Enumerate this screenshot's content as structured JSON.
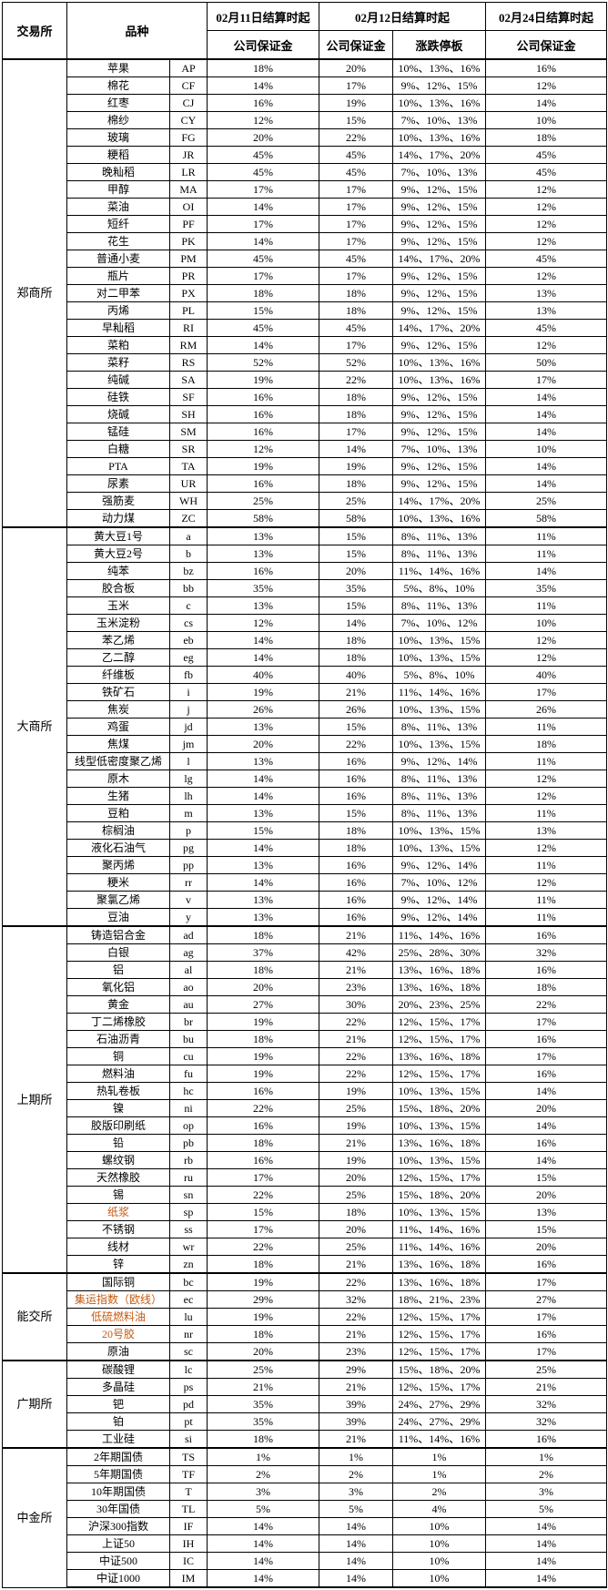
{
  "header": {
    "exchange": "交易所",
    "product": "品种",
    "col_0211": "02月11日结算时起",
    "col_0212": "02月12日结算时起",
    "col_0224": "02月24日结算时起",
    "sub_margin_0211": "公司保证金",
    "sub_margin_0212": "公司保证金",
    "sub_limit": "涨跌停板",
    "sub_margin_0224": "公司保证金"
  },
  "accent_color": "#C55A11",
  "highlight_names": [
    "纸浆",
    "集运指数（欧线）",
    "低硫燃料油",
    "20号胶"
  ],
  "columns_order": [
    "品种名称",
    "代码",
    "02月11日公司保证金",
    "02月12日公司保证金",
    "02月12日涨跌停板",
    "02月24日公司保证金"
  ],
  "groups": [
    {
      "exchange": "郑商所",
      "rows": [
        [
          "苹果",
          "AP",
          "18%",
          "20%",
          "10%、13%、16%",
          "16%"
        ],
        [
          "棉花",
          "CF",
          "14%",
          "17%",
          "9%、12%、15%",
          "12%"
        ],
        [
          "红枣",
          "CJ",
          "16%",
          "19%",
          "10%、13%、16%",
          "14%"
        ],
        [
          "棉纱",
          "CY",
          "12%",
          "15%",
          "7%、10%、13%",
          "10%"
        ],
        [
          "玻璃",
          "FG",
          "20%",
          "22%",
          "10%、13%、16%",
          "18%"
        ],
        [
          "粳稻",
          "JR",
          "45%",
          "45%",
          "14%、17%、20%",
          "45%"
        ],
        [
          "晚籼稻",
          "LR",
          "45%",
          "45%",
          "7%、10%、13%",
          "45%"
        ],
        [
          "甲醇",
          "MA",
          "17%",
          "17%",
          "9%、12%、15%",
          "12%"
        ],
        [
          "菜油",
          "OI",
          "14%",
          "17%",
          "9%、12%、15%",
          "12%"
        ],
        [
          "短纤",
          "PF",
          "17%",
          "17%",
          "9%、12%、15%",
          "12%"
        ],
        [
          "花生",
          "PK",
          "14%",
          "17%",
          "9%、12%、15%",
          "12%"
        ],
        [
          "普通小麦",
          "PM",
          "45%",
          "45%",
          "14%、17%、20%",
          "45%"
        ],
        [
          "瓶片",
          "PR",
          "17%",
          "17%",
          "9%、12%、15%",
          "12%"
        ],
        [
          "对二甲苯",
          "PX",
          "18%",
          "18%",
          "9%、12%、15%",
          "13%"
        ],
        [
          "丙烯",
          "PL",
          "15%",
          "18%",
          "9%、12%、15%",
          "13%"
        ],
        [
          "早籼稻",
          "RI",
          "45%",
          "45%",
          "14%、17%、20%",
          "45%"
        ],
        [
          "菜粕",
          "RM",
          "14%",
          "17%",
          "9%、12%、15%",
          "12%"
        ],
        [
          "菜籽",
          "RS",
          "52%",
          "52%",
          "10%、13%、16%",
          "50%"
        ],
        [
          "纯碱",
          "SA",
          "19%",
          "22%",
          "10%、13%、16%",
          "17%"
        ],
        [
          "硅铁",
          "SF",
          "16%",
          "18%",
          "9%、12%、15%",
          "14%"
        ],
        [
          "烧碱",
          "SH",
          "16%",
          "18%",
          "9%、12%、15%",
          "14%"
        ],
        [
          "锰硅",
          "SM",
          "16%",
          "17%",
          "9%、12%、15%",
          "14%"
        ],
        [
          "白糖",
          "SR",
          "12%",
          "14%",
          "7%、10%、13%",
          "10%"
        ],
        [
          "PTA",
          "TA",
          "19%",
          "19%",
          "9%、12%、15%",
          "14%"
        ],
        [
          "尿素",
          "UR",
          "16%",
          "18%",
          "9%、12%、15%",
          "14%"
        ],
        [
          "强筋麦",
          "WH",
          "25%",
          "25%",
          "14%、17%、20%",
          "25%"
        ],
        [
          "动力煤",
          "ZC",
          "58%",
          "58%",
          "10%、13%、16%",
          "58%"
        ]
      ]
    },
    {
      "exchange": "大商所",
      "rows": [
        [
          "黄大豆1号",
          "a",
          "13%",
          "15%",
          "8%、11%、13%",
          "11%"
        ],
        [
          "黄大豆2号",
          "b",
          "13%",
          "15%",
          "8%、11%、13%",
          "11%"
        ],
        [
          "纯苯",
          "bz",
          "16%",
          "20%",
          "11%、14%、16%",
          "14%"
        ],
        [
          "胶合板",
          "bb",
          "35%",
          "35%",
          "5%、8%、10%",
          "35%"
        ],
        [
          "玉米",
          "c",
          "13%",
          "15%",
          "8%、11%、13%",
          "11%"
        ],
        [
          "玉米淀粉",
          "cs",
          "12%",
          "14%",
          "7%、10%、12%",
          "10%"
        ],
        [
          "苯乙烯",
          "eb",
          "14%",
          "18%",
          "10%、13%、15%",
          "12%"
        ],
        [
          "乙二醇",
          "eg",
          "14%",
          "18%",
          "10%、13%、15%",
          "12%"
        ],
        [
          "纤维板",
          "fb",
          "40%",
          "40%",
          "5%、8%、10%",
          "40%"
        ],
        [
          "铁矿石",
          "i",
          "19%",
          "21%",
          "11%、14%、16%",
          "17%"
        ],
        [
          "焦炭",
          "j",
          "26%",
          "26%",
          "10%、13%、15%",
          "26%"
        ],
        [
          "鸡蛋",
          "jd",
          "13%",
          "15%",
          "8%、11%、13%",
          "11%"
        ],
        [
          "焦煤",
          "jm",
          "20%",
          "22%",
          "10%、13%、15%",
          "18%"
        ],
        [
          "线型低密度聚乙烯",
          "l",
          "13%",
          "16%",
          "9%、12%、14%",
          "11%"
        ],
        [
          "原木",
          "lg",
          "14%",
          "16%",
          "8%、11%、13%",
          "12%"
        ],
        [
          "生猪",
          "lh",
          "14%",
          "16%",
          "8%、11%、13%",
          "12%"
        ],
        [
          "豆粕",
          "m",
          "13%",
          "15%",
          "8%、11%、13%",
          "11%"
        ],
        [
          "棕榈油",
          "p",
          "15%",
          "18%",
          "10%、13%、15%",
          "13%"
        ],
        [
          "液化石油气",
          "pg",
          "14%",
          "18%",
          "10%、13%、15%",
          "12%"
        ],
        [
          "聚丙烯",
          "pp",
          "13%",
          "16%",
          "9%、12%、14%",
          "11%"
        ],
        [
          "粳米",
          "rr",
          "14%",
          "16%",
          "7%、10%、12%",
          "12%"
        ],
        [
          "聚氯乙烯",
          "v",
          "13%",
          "16%",
          "9%、12%、14%",
          "11%"
        ],
        [
          "豆油",
          "y",
          "13%",
          "16%",
          "9%、12%、14%",
          "11%"
        ]
      ]
    },
    {
      "exchange": "上期所",
      "rows": [
        [
          "铸造铝合金",
          "ad",
          "18%",
          "21%",
          "11%、14%、16%",
          "16%"
        ],
        [
          "白银",
          "ag",
          "37%",
          "42%",
          "25%、28%、30%",
          "32%"
        ],
        [
          "铝",
          "al",
          "18%",
          "21%",
          "13%、16%、18%",
          "16%"
        ],
        [
          "氧化铝",
          "ao",
          "20%",
          "23%",
          "13%、16%、18%",
          "18%"
        ],
        [
          "黄金",
          "au",
          "27%",
          "30%",
          "20%、23%、25%",
          "22%"
        ],
        [
          "丁二烯橡胶",
          "br",
          "19%",
          "22%",
          "12%、15%、17%",
          "17%"
        ],
        [
          "石油沥青",
          "bu",
          "18%",
          "21%",
          "12%、15%、17%",
          "16%"
        ],
        [
          "铜",
          "cu",
          "19%",
          "22%",
          "13%、16%、18%",
          "17%"
        ],
        [
          "燃料油",
          "fu",
          "19%",
          "22%",
          "12%、15%、17%",
          "16%"
        ],
        [
          "热轧卷板",
          "hc",
          "16%",
          "19%",
          "10%、13%、15%",
          "14%"
        ],
        [
          "镍",
          "ni",
          "22%",
          "25%",
          "15%、18%、20%",
          "20%"
        ],
        [
          "胶版印刷纸",
          "op",
          "16%",
          "19%",
          "10%、13%、15%",
          "14%"
        ],
        [
          "铅",
          "pb",
          "18%",
          "21%",
          "13%、16%、18%",
          "16%"
        ],
        [
          "螺纹钢",
          "rb",
          "16%",
          "19%",
          "10%、13%、15%",
          "14%"
        ],
        [
          "天然橡胶",
          "ru",
          "17%",
          "20%",
          "12%、15%、17%",
          "15%"
        ],
        [
          "锡",
          "sn",
          "22%",
          "25%",
          "15%、18%、20%",
          "20%"
        ],
        [
          "纸浆",
          "sp",
          "15%",
          "18%",
          "10%、13%、15%",
          "13%"
        ],
        [
          "不锈钢",
          "ss",
          "17%",
          "20%",
          "11%、14%、16%",
          "15%"
        ],
        [
          "线材",
          "wr",
          "22%",
          "25%",
          "11%、14%、16%",
          "20%"
        ],
        [
          "锌",
          "zn",
          "18%",
          "21%",
          "13%、16%、18%",
          "16%"
        ]
      ]
    },
    {
      "exchange": "能交所",
      "rows": [
        [
          "国际铜",
          "bc",
          "19%",
          "22%",
          "13%、16%、18%",
          "17%"
        ],
        [
          "集运指数（欧线）",
          "ec",
          "29%",
          "32%",
          "18%、21%、23%",
          "27%"
        ],
        [
          "低硫燃料油",
          "lu",
          "19%",
          "22%",
          "12%、15%、17%",
          "17%"
        ],
        [
          "20号胶",
          "nr",
          "18%",
          "21%",
          "12%、15%、17%",
          "16%"
        ],
        [
          "原油",
          "sc",
          "20%",
          "23%",
          "12%、15%、17%",
          "17%"
        ]
      ]
    },
    {
      "exchange": "广期所",
      "rows": [
        [
          "碳酸锂",
          "lc",
          "25%",
          "29%",
          "15%、18%、20%",
          "25%"
        ],
        [
          "多晶硅",
          "ps",
          "21%",
          "21%",
          "12%、15%、17%",
          "21%"
        ],
        [
          "钯",
          "pd",
          "35%",
          "39%",
          "24%、27%、29%",
          "32%"
        ],
        [
          "铂",
          "pt",
          "35%",
          "39%",
          "24%、27%、29%",
          "32%"
        ],
        [
          "工业硅",
          "si",
          "18%",
          "21%",
          "11%、14%、16%",
          "16%"
        ]
      ]
    },
    {
      "exchange": "中金所",
      "rows": [
        [
          "2年期国债",
          "TS",
          "1%",
          "1%",
          "1%",
          "1%"
        ],
        [
          "5年期国债",
          "TF",
          "2%",
          "2%",
          "1%",
          "2%"
        ],
        [
          "10年期国债",
          "T",
          "3%",
          "3%",
          "2%",
          "3%"
        ],
        [
          "30年国债",
          "TL",
          "5%",
          "5%",
          "4%",
          "5%"
        ],
        [
          "沪深300指数",
          "IF",
          "14%",
          "14%",
          "10%",
          "14%"
        ],
        [
          "上证50",
          "IH",
          "14%",
          "14%",
          "10%",
          "14%"
        ],
        [
          "中证500",
          "IC",
          "14%",
          "14%",
          "10%",
          "14%"
        ],
        [
          "中证1000",
          "IM",
          "14%",
          "14%",
          "10%",
          "14%"
        ]
      ]
    }
  ]
}
